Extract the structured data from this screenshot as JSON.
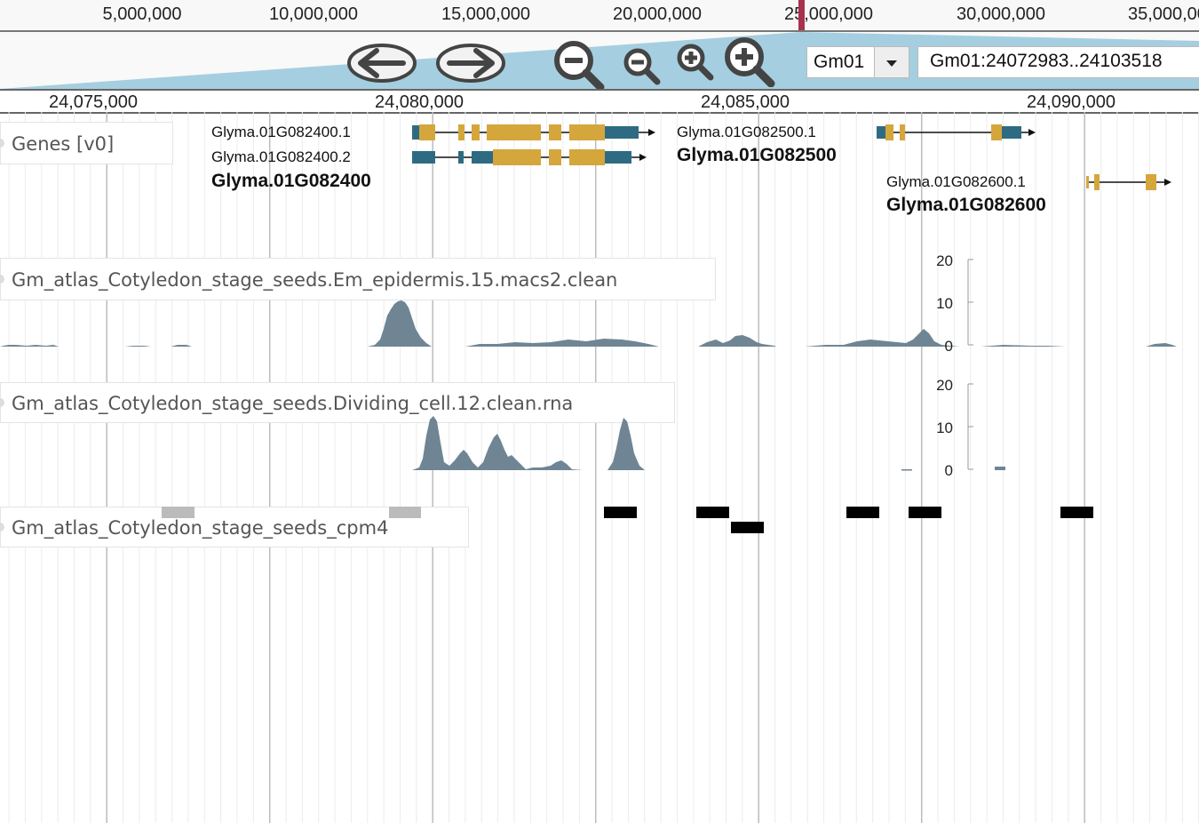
{
  "overview": {
    "labels": [
      "5,000,000",
      "10,000,000",
      "15,000,000",
      "20,000,000",
      "25,000,000",
      "30,000,000",
      "35,000,000"
    ]
  },
  "navigation": {
    "reference": "Gm01",
    "location": "Gm01:24072983..24103518"
  },
  "detail_ruler": {
    "labels": [
      "24,075,000",
      "24,080,000",
      "24,085,000",
      "24,090,000"
    ]
  },
  "tracks": {
    "genes": {
      "label": "Genes [v0]",
      "genes": [
        {
          "name": "Glyma.01G082400",
          "transcripts": [
            "Glyma.01G082400.1",
            "Glyma.01G082400.2"
          ]
        },
        {
          "name": "Glyma.01G082500",
          "transcripts": [
            "Glyma.01G082500.1"
          ]
        },
        {
          "name": "Glyma.01G082600",
          "transcripts": [
            "Glyma.01G082600.1"
          ]
        }
      ]
    },
    "epidermis": {
      "label": "Gm_atlas_Cotyledon_stage_seeds.Em_epidermis.15.macs2.clean",
      "axis": [
        "20",
        "10",
        "0"
      ]
    },
    "dividing": {
      "label": "Gm_atlas_Cotyledon_stage_seeds.Dividing_cell.12.clean.rna",
      "axis": [
        "20",
        "10",
        "0"
      ]
    },
    "cpm4": {
      "label": "Gm_atlas_Cotyledon_stage_seeds_cpm4"
    }
  },
  "colors": {
    "cds": "#d4a63c",
    "utr": "#2e6b82",
    "coverage": "#6f8594",
    "highlight": "#a8324e",
    "zoom_region": "#a5cfe0"
  }
}
